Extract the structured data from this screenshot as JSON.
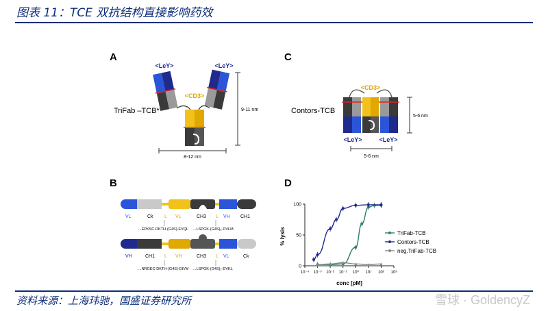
{
  "header": {
    "figure_title": "图表 11：TCE 双抗结构直接影响药效"
  },
  "panel_a": {
    "letter": "A",
    "ley_left": "<LeY>",
    "ley_right": "<LeY>",
    "cd3": "<CD3>",
    "name": "TriFab –TCB*",
    "height_dim": "9-11 nm",
    "width_dim": "8-12 nm"
  },
  "panel_c": {
    "letter": "C",
    "cd3": "<CD3>",
    "name": "Contors-TCB",
    "ley_left": "<LeY>",
    "ley_right": "<LeY>",
    "height_dim": "5-6 nm",
    "width_dim": "5-6 nm"
  },
  "panel_b": {
    "letter": "B",
    "chain1": {
      "labels": [
        "VL",
        "Ck",
        "L",
        "VL",
        "CH3",
        "L",
        "VH",
        "CH1"
      ],
      "linker_left": "...EPKSC-DKTH-(G4S)-EVQL",
      "linker_right": "...LSPGK-(G4S)₂-DVLM"
    },
    "chain2": {
      "labels": [
        "VH",
        "CH1",
        "L",
        "VH",
        "CH3",
        "L",
        "VL",
        "Ck"
      ],
      "linker_left": "...NRGEC-DKTH-(G4S)-DIVM",
      "linker_right": "...LSPGK-(G4S)₂-DVKL"
    }
  },
  "panel_d": {
    "letter": "D",
    "ylabel": "% lysis",
    "xlabel": "conc [pM]",
    "legend": [
      "TriFab-TCB",
      "Contors-TCB",
      "neg.TriFab-TCB"
    ]
  },
  "chart_data": {
    "type": "scatter",
    "xlabel": "conc [pM]",
    "ylabel": "% lysis",
    "x_scale": "log",
    "xlim": [
      0.0001,
      1000
    ],
    "ylim": [
      0,
      100
    ],
    "x_ticks": [
      "10⁻⁴",
      "10⁻³",
      "10⁻²",
      "10⁻¹",
      "10⁰",
      "10¹",
      "10²",
      "10³"
    ],
    "y_ticks": [
      "0",
      "50",
      "100"
    ],
    "legend_position": "right",
    "series": [
      {
        "name": "TriFab-TCB",
        "color": "#2f7d6e",
        "x": [
          0.001,
          0.01,
          0.1,
          1,
          3,
          10,
          30,
          100
        ],
        "y": [
          2,
          2,
          3,
          30,
          68,
          95,
          98,
          98
        ]
      },
      {
        "name": "Contors-TCB",
        "color": "#1f2a8c",
        "x": [
          0.0005,
          0.001,
          0.01,
          0.03,
          0.1,
          1,
          10,
          100
        ],
        "y": [
          10,
          18,
          60,
          75,
          93,
          98,
          99,
          99
        ]
      },
      {
        "name": "neg.TriFab-TCB",
        "color": "#888888",
        "x": [
          0.001,
          0.01,
          0.1,
          1,
          10,
          100
        ],
        "y": [
          2,
          3,
          5,
          3,
          2,
          3
        ]
      }
    ]
  },
  "footer": {
    "source": "资料来源：上海玮驰，国盛证券研究所",
    "watermark": "雪球 · GoldencyZ"
  }
}
